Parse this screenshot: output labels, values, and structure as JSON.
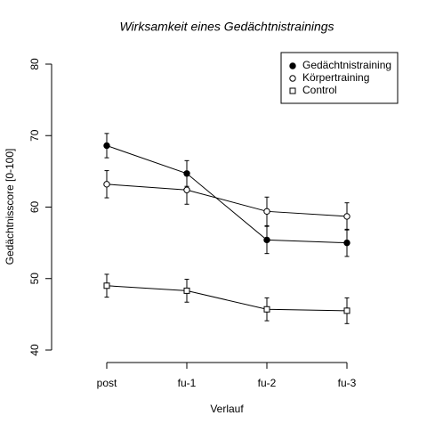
{
  "chart_data": {
    "type": "line",
    "title": "Wirksamkeit eines Gedächtnistrainings",
    "xlabel": "Verlauf",
    "ylabel": "Gedächtnisscore [0-100]",
    "categories": [
      "post",
      "fu-1",
      "fu-2",
      "fu-3"
    ],
    "series": [
      {
        "name": "Gedächtnistraining",
        "color": "#000000",
        "marker": "filled-circle",
        "values": [
          68.6,
          64.7,
          55.4,
          55.0
        ],
        "errors": [
          1.7,
          1.8,
          1.9,
          1.9
        ]
      },
      {
        "name": "Körpertraining",
        "color": "#000000",
        "marker": "open-circle",
        "values": [
          63.2,
          62.4,
          59.4,
          58.7
        ],
        "errors": [
          1.9,
          2.0,
          2.0,
          1.9
        ]
      },
      {
        "name": "Control",
        "color": "#000000",
        "marker": "open-square",
        "values": [
          49.0,
          48.3,
          45.7,
          45.5
        ],
        "errors": [
          1.6,
          1.6,
          1.6,
          1.8
        ]
      }
    ],
    "ylim": [
      40,
      80
    ],
    "yticks": [
      40,
      50,
      60,
      70,
      80
    ],
    "legend": "top-right",
    "grid": false
  }
}
